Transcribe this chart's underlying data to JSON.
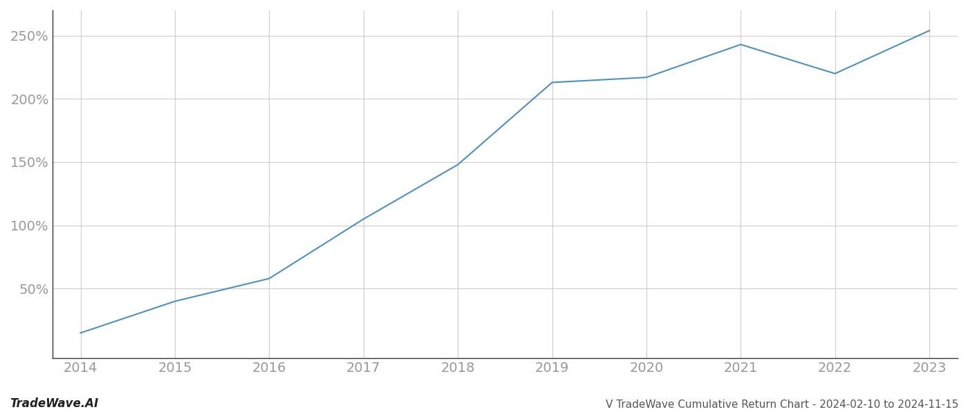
{
  "x_years": [
    2014,
    2015,
    2016,
    2017,
    2018,
    2019,
    2020,
    2021,
    2022,
    2023
  ],
  "y_values": [
    15,
    40,
    58,
    105,
    148,
    213,
    217,
    243,
    220,
    254
  ],
  "line_color": "#4a90c4",
  "line_width": 1.5,
  "background_color": "#ffffff",
  "grid_color": "#cccccc",
  "tick_color": "#999999",
  "spine_color": "#333333",
  "title_text": "V TradeWave Cumulative Return Chart - 2024-02-10 to 2024-11-15",
  "watermark_text": "TradeWave.AI",
  "ylim": [
    -5,
    270
  ],
  "yticks": [
    50,
    100,
    150,
    200,
    250
  ],
  "ytick_labels": [
    "50%",
    "100%",
    "150%",
    "200%",
    "250%"
  ],
  "title_fontsize": 11,
  "watermark_fontsize": 12,
  "tick_fontsize": 14
}
